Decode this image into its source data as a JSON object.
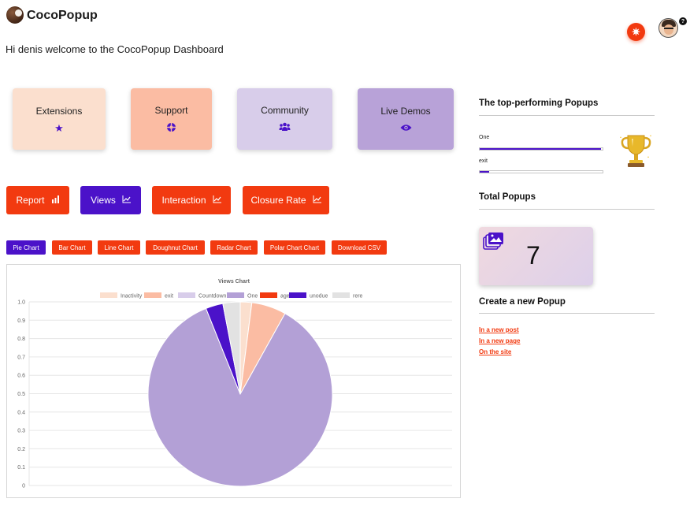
{
  "app": {
    "title": "CocoPopup"
  },
  "header": {
    "welcome": "Hi denis welcome to the CocoPopup Dashboard",
    "notification_icon": "sun-icon",
    "help_glyph": "?"
  },
  "cards": [
    {
      "label": "Extensions",
      "icon": "star-icon",
      "color": "#fbdfce"
    },
    {
      "label": "Support",
      "icon": "life-ring-icon",
      "color": "#fbbca3"
    },
    {
      "label": "Community",
      "icon": "users-icon",
      "color": "#d8cdea"
    },
    {
      "label": "Live Demos",
      "icon": "eye-icon",
      "color": "#b8a2d8"
    }
  ],
  "metrics": [
    {
      "label": "Report",
      "icon": "bar-chart-icon",
      "active": false
    },
    {
      "label": "Views",
      "icon": "line-chart-icon",
      "active": true
    },
    {
      "label": "Interaction",
      "icon": "line-chart-icon",
      "active": false
    },
    {
      "label": "Closure Rate",
      "icon": "line-chart-icon",
      "active": false
    }
  ],
  "chart_tabs": [
    {
      "label": "Pie Chart",
      "active": true
    },
    {
      "label": "Bar Chart",
      "active": false
    },
    {
      "label": "Line Chart",
      "active": false
    },
    {
      "label": "Doughnut Chart",
      "active": false
    },
    {
      "label": "Radar Chart",
      "active": false
    },
    {
      "label": "Polar Chart Chart",
      "active": false
    },
    {
      "label": "Download CSV",
      "active": false
    }
  ],
  "chart_data": {
    "type": "pie",
    "title": "Views Chart",
    "categories": [
      "Inactivity",
      "exit",
      "Countdown",
      "One",
      "age",
      "unodue",
      "rere"
    ],
    "values": [
      2,
      6,
      0,
      85,
      0,
      3,
      3
    ],
    "colors": [
      "#fbdfce",
      "#fbbca3",
      "#d8cdea",
      "#b3a0d6",
      "#f23a10",
      "#4b12c9",
      "#e2e2e2"
    ],
    "ylim": [
      0,
      1
    ],
    "yticks": [
      "1.0",
      "0.9",
      "0.8",
      "0.7",
      "0.6",
      "0.5",
      "0.4",
      "0.3",
      "0.2",
      "0.1",
      "0"
    ],
    "legend_position": "top",
    "grid": true
  },
  "top_popups": {
    "title": "The top-performing Popups",
    "items": [
      {
        "name": "One",
        "fraction": 0.99
      },
      {
        "name": "exit",
        "fraction": 0.08
      }
    ],
    "trophy_icon": "trophy-icon"
  },
  "total": {
    "title": "Total Popups",
    "value": "7",
    "icon": "gallery-icon"
  },
  "create": {
    "title": "Create a new Popup",
    "links": [
      "In a new post",
      "In a new page",
      "On the site"
    ]
  },
  "colors": {
    "accent_red": "#f23a10",
    "accent_purple": "#4b12c9"
  }
}
